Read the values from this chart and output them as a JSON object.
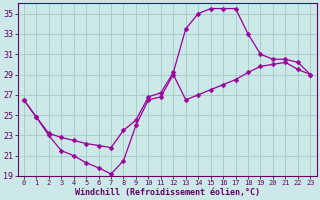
{
  "xlabel": "Windchill (Refroidissement éolien,°C)",
  "line_color": "#990099",
  "marker": "D",
  "marker_size": 2.5,
  "bg_color": "#cce8e8",
  "grid_color": "#aacccc",
  "axis_color": "#660066",
  "tick_color": "#660066",
  "xlim": [
    -0.5,
    23.5
  ],
  "ylim": [
    19,
    36
  ],
  "xticks": [
    0,
    1,
    2,
    3,
    4,
    5,
    6,
    7,
    8,
    9,
    10,
    11,
    12,
    13,
    14,
    15,
    16,
    17,
    18,
    19,
    20,
    21,
    22,
    23
  ],
  "yticks": [
    19,
    21,
    23,
    25,
    27,
    29,
    31,
    33,
    35
  ],
  "segments": [
    {
      "x": [
        0,
        1,
        2,
        3,
        4,
        5,
        6,
        7,
        8,
        9,
        10,
        11,
        12,
        13,
        14,
        15,
        16,
        17,
        18,
        19,
        20,
        21,
        22,
        23
      ],
      "y": [
        26.5,
        24.8,
        23.0,
        21.5,
        21.0,
        20.3,
        19.8,
        19.2,
        20.5,
        24.0,
        26.5,
        26.8,
        29.0,
        26.5,
        27.0,
        27.5,
        28.0,
        28.5,
        29.2,
        29.8,
        30.0,
        30.2,
        29.5,
        29.0
      ]
    },
    {
      "x": [
        0,
        1,
        2,
        3,
        4,
        5,
        6,
        7,
        8,
        9,
        10,
        11,
        12,
        13,
        14,
        15,
        16,
        17,
        18,
        19,
        20,
        21,
        22,
        23
      ],
      "y": [
        26.5,
        24.8,
        23.2,
        22.8,
        22.5,
        22.2,
        22.0,
        21.8,
        23.5,
        24.5,
        26.8,
        27.2,
        29.2,
        33.5,
        35.0,
        35.5,
        35.5,
        35.5,
        33.0,
        31.0,
        30.5,
        30.5,
        30.2,
        29.0
      ]
    }
  ]
}
